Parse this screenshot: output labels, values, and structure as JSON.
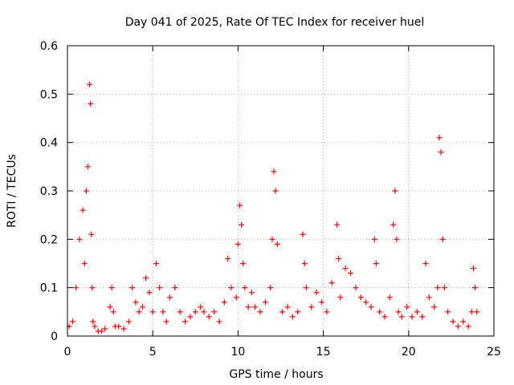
{
  "chart_data": {
    "type": "scatter",
    "title": "Day 041 of 2025, Rate Of TEC Index for receiver huel",
    "xlabel": "GPS time / hours",
    "ylabel": "ROTI / TECUs",
    "xlim": [
      0,
      25
    ],
    "ylim": [
      0,
      0.6
    ],
    "xticks": [
      0,
      5,
      10,
      15,
      20,
      25
    ],
    "xtick_labels": [
      "0",
      "5",
      "10",
      "15",
      "20",
      "25"
    ],
    "yticks": [
      0,
      0.1,
      0.2,
      0.3,
      0.4,
      0.5,
      0.6
    ],
    "ytick_labels": [
      "0",
      "0.1",
      "0.2",
      "0.3",
      "0.4",
      "0.5",
      "0.6"
    ],
    "grid": true,
    "marker": "plus",
    "color": "#ff0000",
    "series": [
      {
        "values_x": [
          0.1,
          0.3,
          0.5,
          0.7,
          0.9,
          1.0,
          1.1,
          1.2,
          1.3,
          1.35,
          1.4,
          1.45,
          1.5,
          1.6,
          1.8,
          2.0,
          2.2,
          2.5,
          2.6,
          2.7,
          2.8,
          3.0,
          3.3,
          3.6,
          3.8,
          4.0,
          4.2,
          4.4,
          4.6,
          4.8,
          5.0,
          5.2,
          5.4,
          5.6,
          5.8,
          6.0,
          6.3,
          6.6,
          6.9,
          7.2,
          7.5,
          7.8,
          8.0,
          8.3,
          8.6,
          8.9,
          9.2,
          9.4,
          9.6,
          9.9,
          10.0,
          10.1,
          10.2,
          10.3,
          10.4,
          10.6,
          10.8,
          11.0,
          11.3,
          11.6,
          11.9,
          12.0,
          12.1,
          12.2,
          12.3,
          12.6,
          12.9,
          13.2,
          13.5,
          13.8,
          13.9,
          14.0,
          14.3,
          14.6,
          14.9,
          15.2,
          15.5,
          15.8,
          15.9,
          16.0,
          16.3,
          16.6,
          16.9,
          17.2,
          17.5,
          17.8,
          18.0,
          18.1,
          18.3,
          18.6,
          18.9,
          19.1,
          19.2,
          19.3,
          19.4,
          19.6,
          19.9,
          20.2,
          20.5,
          20.8,
          21.0,
          21.2,
          21.5,
          21.7,
          21.8,
          21.9,
          22.0,
          22.1,
          22.3,
          22.6,
          22.9,
          23.2,
          23.5,
          23.7,
          23.8,
          23.9,
          24.0
        ],
        "values_y": [
          0.02,
          0.03,
          0.1,
          0.2,
          0.26,
          0.15,
          0.3,
          0.35,
          0.52,
          0.48,
          0.21,
          0.1,
          0.03,
          0.02,
          0.01,
          0.01,
          0.015,
          0.06,
          0.1,
          0.05,
          0.02,
          0.02,
          0.015,
          0.03,
          0.1,
          0.07,
          0.05,
          0.06,
          0.12,
          0.09,
          0.05,
          0.15,
          0.1,
          0.05,
          0.03,
          0.08,
          0.1,
          0.05,
          0.03,
          0.04,
          0.05,
          0.06,
          0.05,
          0.04,
          0.05,
          0.03,
          0.07,
          0.16,
          0.1,
          0.08,
          0.19,
          0.27,
          0.23,
          0.15,
          0.1,
          0.06,
          0.09,
          0.06,
          0.05,
          0.07,
          0.1,
          0.2,
          0.34,
          0.3,
          0.19,
          0.05,
          0.06,
          0.04,
          0.05,
          0.21,
          0.15,
          0.1,
          0.06,
          0.09,
          0.07,
          0.05,
          0.11,
          0.23,
          0.16,
          0.08,
          0.14,
          0.13,
          0.1,
          0.08,
          0.07,
          0.06,
          0.2,
          0.15,
          0.05,
          0.04,
          0.08,
          0.23,
          0.3,
          0.2,
          0.05,
          0.04,
          0.06,
          0.04,
          0.05,
          0.04,
          0.15,
          0.08,
          0.06,
          0.1,
          0.41,
          0.38,
          0.2,
          0.1,
          0.05,
          0.03,
          0.02,
          0.03,
          0.02,
          0.05,
          0.14,
          0.1,
          0.05
        ]
      }
    ]
  }
}
